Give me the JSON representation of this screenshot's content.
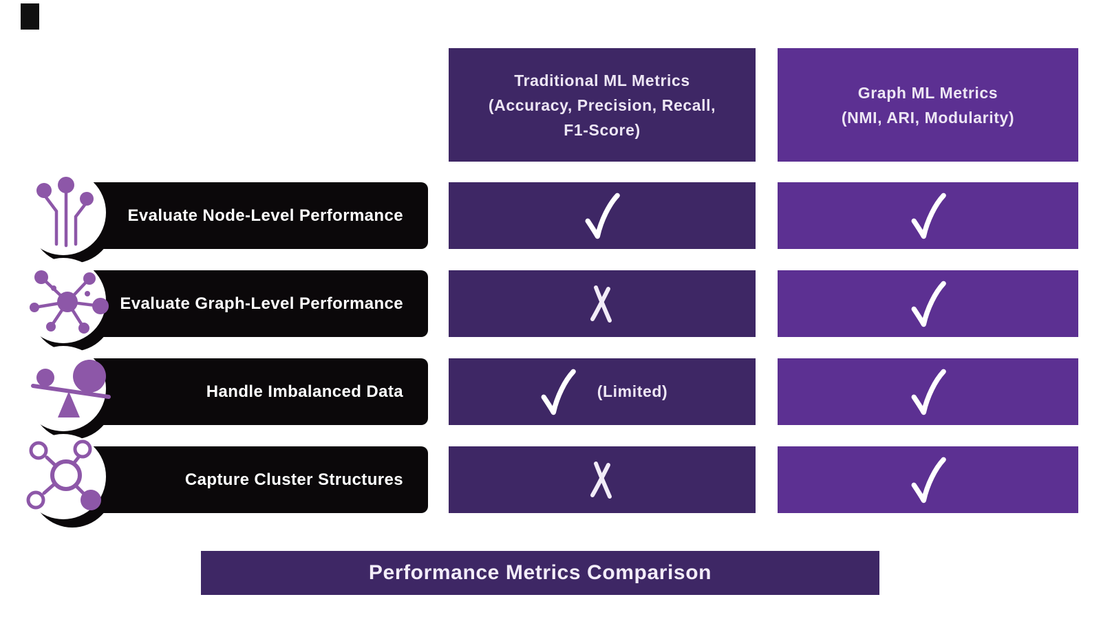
{
  "colors": {
    "dark_purple": "#3E2765",
    "light_purple": "#5C3092",
    "icon_purple": "#8D57A8",
    "bar_black": "#0B080A",
    "header_text": "#EDE6F4",
    "background": "#FFFFFF"
  },
  "columns": [
    {
      "id": "traditional",
      "title": "Traditional ML Metrics\n(Accuracy, Precision, Recall,\nF1-Score)"
    },
    {
      "id": "graph",
      "title": "Graph ML Metrics\n(NMI, ARI, Modularity)"
    }
  ],
  "rows": [
    {
      "label": "Evaluate Node-Level Performance",
      "icon": "node-pins-icon",
      "traditional": {
        "mark": "check"
      },
      "graph": {
        "mark": "check"
      }
    },
    {
      "label": "Evaluate Graph-Level Performance",
      "icon": "network-hub-icon",
      "traditional": {
        "mark": "x"
      },
      "graph": {
        "mark": "check"
      }
    },
    {
      "label": "Handle Imbalanced Data",
      "icon": "balance-scale-icon",
      "traditional": {
        "mark": "check",
        "note": "(Limited)"
      },
      "graph": {
        "mark": "check"
      }
    },
    {
      "label": "Capture Cluster Structures",
      "icon": "cluster-nodes-icon",
      "traditional": {
        "mark": "x"
      },
      "graph": {
        "mark": "check"
      }
    }
  ],
  "footer": {
    "title": "Performance Metrics Comparison"
  }
}
